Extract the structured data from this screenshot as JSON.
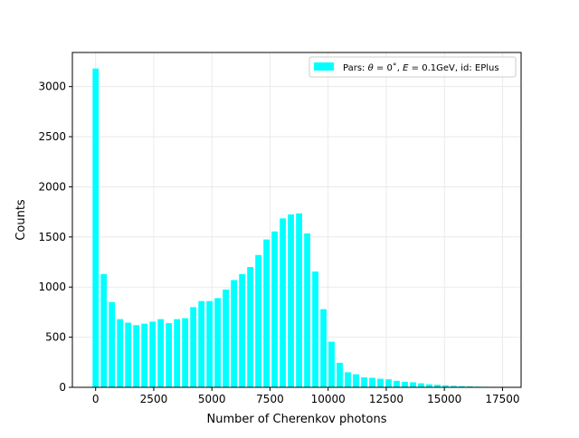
{
  "chart_data": {
    "type": "bar",
    "title": "",
    "xlabel": "Number of Cherenkov photons",
    "ylabel": "Counts",
    "xlim": [
      -1000,
      18300
    ],
    "ylim": [
      0,
      3340
    ],
    "grid": true,
    "legend_position": "top-right",
    "x_ticks": [
      0,
      2500,
      5000,
      7500,
      10000,
      12500,
      15000,
      17500
    ],
    "x_tick_labels": [
      "0",
      "2500",
      "5000",
      "7500",
      "10000",
      "12500",
      "15000",
      "17500"
    ],
    "y_ticks": [
      0,
      500,
      1000,
      1500,
      2000,
      2500,
      3000
    ],
    "y_tick_labels": [
      "0",
      "500",
      "1000",
      "1500",
      "2000",
      "2500",
      "3000"
    ],
    "bin_width": 350,
    "x": [
      0,
      350,
      700,
      1050,
      1400,
      1750,
      2100,
      2450,
      2800,
      3150,
      3500,
      3850,
      4200,
      4550,
      4900,
      5250,
      5600,
      5950,
      6300,
      6650,
      7000,
      7350,
      7700,
      8050,
      8400,
      8750,
      9100,
      9450,
      9800,
      10150,
      10500,
      10850,
      11200,
      11550,
      11900,
      12250,
      12600,
      12950,
      13300,
      13650,
      14000,
      14350,
      14700,
      15050,
      15400,
      15750,
      16100,
      16450,
      16800,
      17150
    ],
    "series": [
      {
        "name": "Pars: θ = 0˚, E = 0.1GeV, id: EPlus",
        "color": "#00ffff",
        "values": [
          3180,
          1130,
          850,
          680,
          645,
          620,
          635,
          655,
          680,
          640,
          680,
          690,
          800,
          860,
          860,
          890,
          975,
          1070,
          1130,
          1200,
          1320,
          1475,
          1555,
          1685,
          1725,
          1735,
          1535,
          1155,
          780,
          455,
          245,
          150,
          130,
          100,
          95,
          85,
          80,
          65,
          55,
          50,
          40,
          30,
          25,
          20,
          15,
          12,
          10,
          7,
          5,
          3
        ]
      }
    ]
  },
  "legend": {
    "prefix": "Pars: ",
    "theta_symbol": "θ",
    "theta_value": " = 0˚, ",
    "energy_symbol": "E",
    "energy_value": " = 0.1GeV, id: EPlus"
  },
  "colors": {
    "bar": "#00ffff",
    "grid": "#e6e6e6",
    "axes": "#000000"
  }
}
